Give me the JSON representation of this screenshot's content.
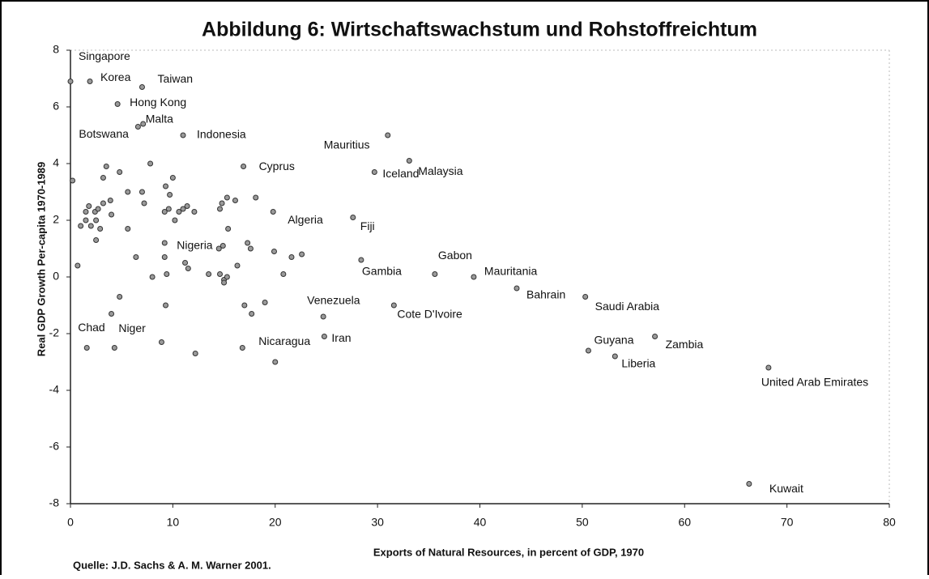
{
  "chart_data": {
    "type": "scatter",
    "title": "Abbildung 6: Wirtschaftswachstum und Rohstoffreichtum",
    "x_label": "Exports of Natural Resources, in percent of GDP, 1970",
    "y_label": "Real GDP Growth Per-capita 1970-1989",
    "source": "Quelle: J.D. Sachs & A. M. Warner 2001.",
    "color": "#9a9a9a",
    "xlim": [
      0,
      80
    ],
    "ylim": [
      -8,
      8
    ],
    "xticks": [
      0,
      10,
      20,
      30,
      40,
      50,
      60,
      70,
      80
    ],
    "yticks": [
      -8,
      -6,
      -4,
      -2,
      0,
      2,
      4,
      6,
      8
    ],
    "labels": [
      "Singapore",
      "Korea",
      "Taiwan",
      "Hong Kong",
      "Malta",
      "Botswana",
      "Indonesia",
      "Mauritius",
      "Malaysia",
      "Iceland",
      "Cyprus",
      "Algeria",
      "Fiji",
      "Nigeria",
      "Gambia",
      "Gabon",
      "Mauritania",
      "Bahrain",
      "Saudi Arabia",
      "Venezuela",
      "Cote D'Ivoire",
      "Iran",
      "Nicaragua",
      "Chad",
      "Niger",
      "Guyana",
      "Liberia",
      "Zambia",
      "United Arab Emirates",
      "Kuwait",
      null,
      null,
      null,
      null,
      null,
      null,
      null,
      null,
      null,
      null,
      null,
      null,
      null,
      null,
      null,
      null,
      null,
      null,
      null,
      null,
      null,
      null,
      null,
      null,
      null,
      null,
      null,
      null,
      null,
      null,
      null,
      null,
      null,
      null,
      null,
      null,
      null,
      null,
      null,
      null,
      null,
      null,
      null,
      null,
      null,
      null,
      null,
      null,
      null,
      null,
      null,
      null,
      null,
      null,
      null,
      null,
      null,
      null,
      null,
      null,
      null,
      null,
      null,
      null,
      null,
      null,
      null,
      null
    ],
    "x": [
      0,
      1.9,
      7.0,
      4.6,
      7.1,
      6.6,
      11.0,
      31.0,
      33.1,
      29.7,
      16.9,
      19.8,
      27.6,
      14.5,
      28.4,
      35.6,
      39.4,
      43.6,
      50.3,
      24.7,
      31.6,
      24.8,
      16.8,
      1.6,
      4.3,
      50.6,
      53.2,
      57.1,
      68.2,
      66.3,
      0.2,
      0.7,
      1.0,
      1.5,
      1.8,
      1.5,
      2.0,
      2.4,
      2.5,
      2.7,
      2.5,
      2.9,
      3.2,
      3.2,
      3.5,
      3.9,
      4.0,
      4.8,
      5.6,
      5.6,
      4.8,
      4.0,
      7.0,
      7.2,
      6.4,
      8.0,
      9.3,
      9.7,
      10.0,
      9.2,
      9.6,
      10.2,
      10.6,
      11.0,
      11.4,
      12.1,
      9.2,
      9.2,
      9.4,
      11.2,
      11.5,
      13.5,
      14.6,
      15.0,
      15.3,
      15.0,
      14.9,
      14.6,
      14.8,
      15.3,
      15.4,
      16.1,
      18.1,
      17.3,
      17.6,
      16.3,
      19.9,
      21.6,
      22.6,
      20.8,
      17.0,
      17.7,
      19.0,
      9.3,
      8.9,
      12.2,
      20.0,
      7.8
    ],
    "values": [
      6.9,
      6.9,
      6.7,
      6.1,
      5.4,
      5.3,
      5.0,
      5.0,
      4.1,
      3.7,
      3.9,
      2.3,
      2.1,
      1.0,
      0.6,
      0.1,
      0.0,
      -0.4,
      -0.7,
      -1.4,
      -1.0,
      -2.1,
      -2.5,
      -2.5,
      -2.5,
      -2.6,
      -2.8,
      -2.1,
      -3.2,
      -7.3,
      3.4,
      0.4,
      1.8,
      2.3,
      2.5,
      2.0,
      1.8,
      2.3,
      2.0,
      2.4,
      1.3,
      1.7,
      2.6,
      3.5,
      3.9,
      2.7,
      2.2,
      3.7,
      3.0,
      1.7,
      -0.7,
      -1.3,
      3.0,
      2.6,
      0.7,
      0.0,
      3.2,
      2.9,
      3.5,
      2.3,
      2.4,
      2.0,
      2.3,
      2.4,
      2.5,
      2.3,
      1.2,
      0.7,
      0.1,
      0.5,
      0.3,
      0.1,
      0.1,
      -0.1,
      0.0,
      -0.2,
      1.1,
      2.4,
      2.6,
      2.8,
      1.7,
      2.7,
      2.8,
      1.2,
      1.0,
      0.4,
      0.9,
      0.7,
      0.8,
      0.1,
      -1.0,
      -1.3,
      -0.9,
      -1.0,
      -2.3,
      -2.7,
      -3.0,
      4.0
    ]
  }
}
